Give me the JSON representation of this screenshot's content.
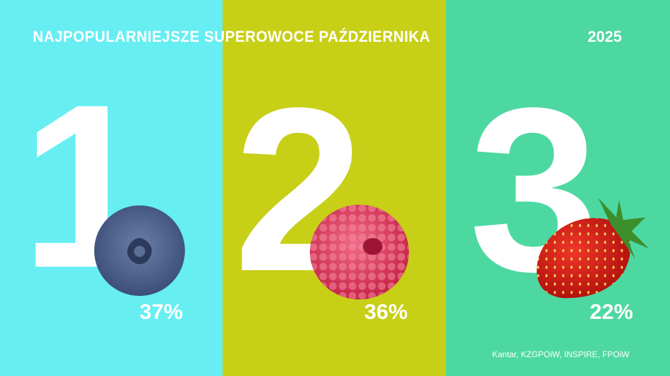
{
  "title": "NAJPOPULARNIEJSZE SUPEROWOCE PAŹDZIERNIKA",
  "year": "2025",
  "colors": {
    "panel1": "#66EEF3",
    "panel2": "#C8CF17",
    "panel3": "#4DD8A2"
  },
  "ranking": [
    {
      "rank": "1",
      "fruit": "blueberry",
      "percent": "37%"
    },
    {
      "rank": "2",
      "fruit": "raspberry",
      "percent": "36%"
    },
    {
      "rank": "3",
      "fruit": "strawberry",
      "percent": "22%"
    }
  ],
  "source": "Kantar, KZGPOiW, INSPIRE, FPOiW"
}
